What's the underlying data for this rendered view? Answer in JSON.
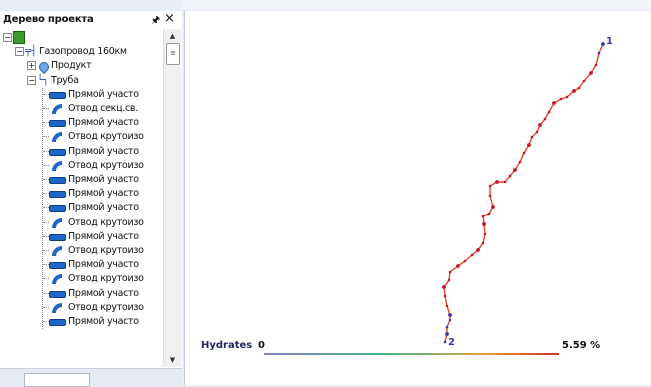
{
  "tree_panel": {
    "title": "Дерево проекта",
    "pin_icon": "pin-icon",
    "close_icon": "close-icon",
    "items": [
      {
        "label": "",
        "icon": "project-db-icon",
        "expander": "−"
      },
      {
        "label": "Газопровод 160км",
        "icon": "pipeline-icon",
        "expander": "−"
      },
      {
        "label": "Продукт",
        "icon": "product-drop-icon",
        "expander": "+"
      },
      {
        "label": "Труба",
        "icon": "pipe-icon",
        "expander": "−"
      },
      {
        "label": "Прямой участо",
        "icon": "straight-segment-icon"
      },
      {
        "label": "Отвод секц.св.",
        "icon": "bend-icon"
      },
      {
        "label": "Прямой участо",
        "icon": "straight-segment-icon"
      },
      {
        "label": "Отвод крутоизо",
        "icon": "bend-icon"
      },
      {
        "label": "Прямой участо",
        "icon": "straight-segment-icon"
      },
      {
        "label": "Отвод крутоизо",
        "icon": "bend-icon"
      },
      {
        "label": "Прямой участо",
        "icon": "straight-segment-icon"
      },
      {
        "label": "Прямой участо",
        "icon": "straight-segment-icon"
      },
      {
        "label": "Прямой участо",
        "icon": "straight-segment-icon"
      },
      {
        "label": "Отвод крутоизо",
        "icon": "bend-icon"
      },
      {
        "label": "Прямой участо",
        "icon": "straight-segment-icon"
      },
      {
        "label": "Отвод крутоизо",
        "icon": "bend-icon"
      },
      {
        "label": "Прямой участо",
        "icon": "straight-segment-icon"
      },
      {
        "label": "Отвод крутоизо",
        "icon": "bend-icon"
      },
      {
        "label": "Прямой участо",
        "icon": "straight-segment-icon"
      },
      {
        "label": "Отвод крутоизо",
        "icon": "bend-icon"
      },
      {
        "label": "Прямой участо",
        "icon": "straight-segment-icon"
      }
    ]
  },
  "map": {
    "start_marker": "1",
    "end_marker": "2",
    "route_color": "#e8462a",
    "node_color": "#c0182a",
    "end_node_color": "#3a3aa0"
  },
  "legend": {
    "parameter": "Hydrates",
    "min": "0",
    "max": "5.59 %"
  }
}
